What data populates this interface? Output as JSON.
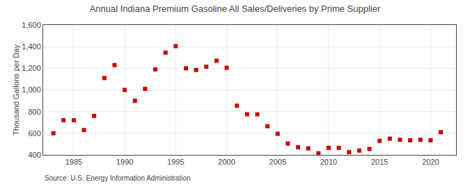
{
  "chart_data": {
    "type": "scatter",
    "title": "Annual Indiana Premium Gasoline All Sales/Deliveries by Prime Supplier",
    "ylabel": "Thousand Gallons per Day",
    "source": "Source: U.S. Energy Information Administration",
    "color": "#cc0000",
    "marker": "square",
    "grid": true,
    "xlim": [
      1982,
      2022.5
    ],
    "ylim": [
      400,
      1600
    ],
    "xticks": [
      1985,
      1990,
      1995,
      2000,
      2005,
      2010,
      2015,
      2020
    ],
    "yticks": [
      400,
      600,
      800,
      {
        "value": 1000,
        "label": "1,000"
      },
      {
        "value": 1200,
        "label": "1,200"
      },
      {
        "value": 1400,
        "label": "1,400"
      },
      {
        "value": 1600,
        "label": "1,600"
      }
    ],
    "x": [
      1983,
      1984,
      1985,
      1986,
      1987,
      1988,
      1989,
      1990,
      1991,
      1992,
      1993,
      1994,
      1995,
      1996,
      1997,
      1998,
      1999,
      2000,
      2001,
      2002,
      2003,
      2004,
      2005,
      2006,
      2007,
      2008,
      2009,
      2010,
      2011,
      2012,
      2013,
      2014,
      2015,
      2016,
      2017,
      2018,
      2019,
      2020,
      2021
    ],
    "values": [
      600,
      720,
      720,
      630,
      760,
      1110,
      1230,
      1000,
      900,
      1010,
      1190,
      1345,
      1405,
      1200,
      1185,
      1215,
      1270,
      1205,
      855,
      775,
      775,
      665,
      595,
      505,
      470,
      460,
      415,
      465,
      465,
      425,
      440,
      455,
      530,
      550,
      540,
      535,
      540,
      535,
      610
    ]
  }
}
